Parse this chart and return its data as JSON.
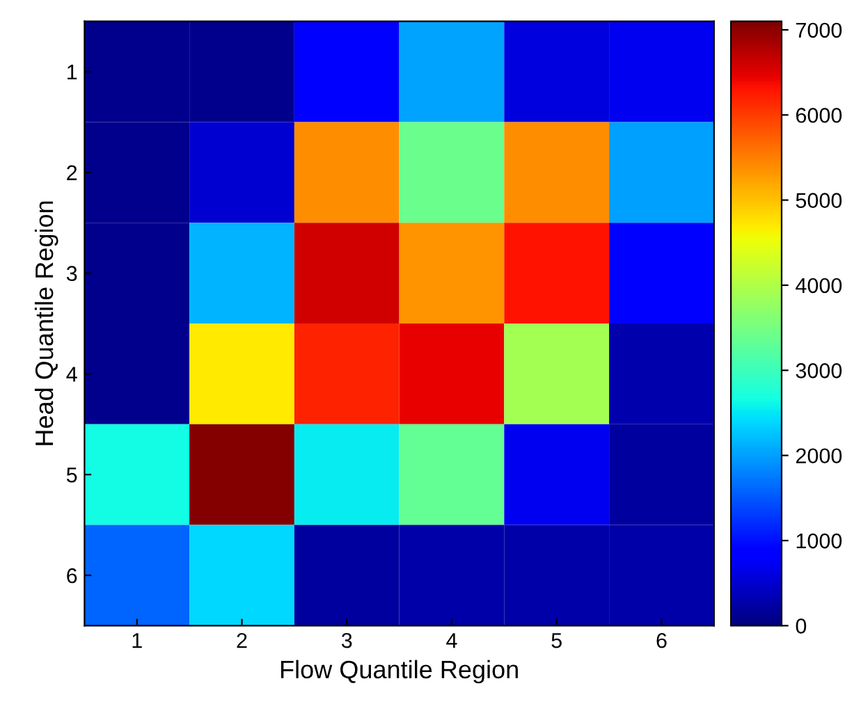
{
  "chart_data": {
    "type": "heatmap",
    "xlabel": "Flow Quantile Region",
    "ylabel": "Head Quantile Region",
    "categories": [
      "1",
      "2",
      "3",
      "4",
      "5",
      "6"
    ],
    "y_categories": [
      "1",
      "2",
      "3",
      "4",
      "5",
      "6"
    ],
    "cells": [
      [
        100,
        100,
        800,
        2050,
        600,
        700
      ],
      [
        100,
        500,
        5400,
        3400,
        5400,
        2000
      ],
      [
        100,
        2150,
        6600,
        5350,
        6300,
        800
      ],
      [
        100,
        4700,
        6200,
        6450,
        3900,
        300
      ],
      [
        2650,
        7050,
        2550,
        3350,
        700,
        200
      ],
      [
        1600,
        2400,
        200,
        250,
        250,
        250
      ]
    ],
    "clim": [
      0,
      7100
    ],
    "cticks": [
      0,
      1000,
      2000,
      3000,
      4000,
      5000,
      6000,
      7000
    ]
  }
}
